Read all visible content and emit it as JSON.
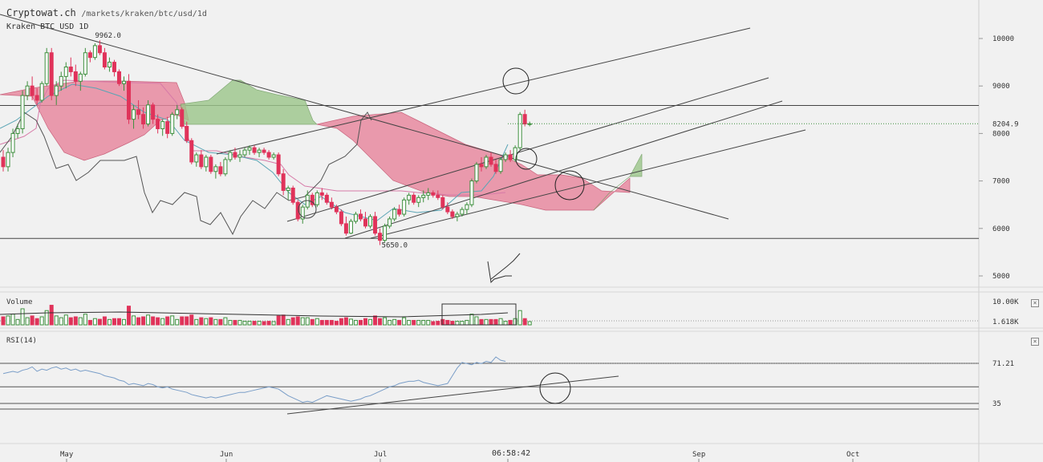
{
  "header": {
    "site": "Cryptowat.ch",
    "path": "/markets/kraken/btc/usd/1d",
    "instrument": "Kraken BTC USD 1D"
  },
  "clock": "06:58:42",
  "panes": {
    "volume_label": "Volume",
    "rsi_label": "RSI(14)",
    "close_symbol": "×"
  },
  "colors": {
    "up": "#3d8f3d",
    "down": "#e0335a",
    "cloud_bear": "#e8849c",
    "cloud_bull": "#9cc68a",
    "rsi": "#7a9ec8",
    "lagging": "#555555",
    "conversion": "#5aa5b5",
    "base": "#d77aa8"
  },
  "chart_data": [
    {
      "type": "candlestick",
      "title": "Kraken BTC USD 1D",
      "x_ticks": [
        "May",
        "Jun",
        "Jul",
        "Sep",
        "Oct"
      ],
      "y_ticks": [
        5000,
        6000,
        7000,
        8000,
        9000,
        10000
      ],
      "ylim": [
        4900,
        10700
      ],
      "last_price": 8204.9,
      "annotations": [
        {
          "label": "9962.0",
          "value": 9962.0
        },
        {
          "label": "5650.0",
          "value": 5650.0
        }
      ],
      "horizontal_levels": [
        8590,
        5790
      ],
      "indicators": [
        "Ichimoku cloud",
        "Conversion line",
        "Base line",
        "Lagging span"
      ],
      "ohlc_approx": [
        [
          7500,
          7650,
          7200,
          7300
        ],
        [
          7300,
          7700,
          7200,
          7600
        ],
        [
          7600,
          8100,
          7500,
          8000
        ],
        [
          8000,
          8200,
          7900,
          8100
        ],
        [
          8100,
          8900,
          8000,
          8800
        ],
        [
          8800,
          9100,
          8700,
          9000
        ],
        [
          9000,
          9200,
          8700,
          8800
        ],
        [
          8800,
          8950,
          8600,
          8700
        ],
        [
          8700,
          9100,
          8650,
          9050
        ],
        [
          9050,
          9800,
          9000,
          9700
        ],
        [
          9700,
          9800,
          8700,
          8800
        ],
        [
          8800,
          9100,
          8600,
          9000
        ],
        [
          9000,
          9300,
          8900,
          9200
        ],
        [
          9200,
          9500,
          8950,
          9400
        ],
        [
          9400,
          9600,
          9200,
          9300
        ],
        [
          9300,
          9450,
          9000,
          9100
        ],
        [
          9100,
          9300,
          8900,
          9250
        ],
        [
          9250,
          9800,
          9200,
          9700
        ],
        [
          9700,
          9750,
          9500,
          9600
        ],
        [
          9600,
          9900,
          9550,
          9850
        ],
        [
          9850,
          9962,
          9650,
          9700
        ],
        [
          9700,
          9800,
          9350,
          9400
        ],
        [
          9400,
          9600,
          9300,
          9500
        ],
        [
          9500,
          9550,
          9200,
          9300
        ],
        [
          9300,
          9350,
          9000,
          9050
        ],
        [
          9050,
          9200,
          8900,
          9100
        ],
        [
          9100,
          9250,
          8200,
          8300
        ],
        [
          8300,
          8600,
          8100,
          8500
        ],
        [
          8500,
          8700,
          8300,
          8400
        ],
        [
          8400,
          8550,
          8100,
          8200
        ],
        [
          8200,
          8700,
          8150,
          8600
        ],
        [
          8600,
          8650,
          8200,
          8300
        ],
        [
          8300,
          8400,
          8000,
          8100
        ],
        [
          8100,
          8300,
          7950,
          8250
        ],
        [
          8250,
          8350,
          7900,
          8000
        ],
        [
          8000,
          8450,
          7950,
          8400
        ],
        [
          8400,
          8600,
          8300,
          8500
        ],
        [
          8500,
          8550,
          8100,
          8150
        ],
        [
          8150,
          8250,
          7800,
          7850
        ],
        [
          7850,
          7900,
          7350,
          7400
        ],
        [
          7400,
          7600,
          7300,
          7550
        ],
        [
          7550,
          7650,
          7250,
          7300
        ],
        [
          7300,
          7550,
          7200,
          7500
        ],
        [
          7500,
          7550,
          7150,
          7200
        ],
        [
          7200,
          7350,
          7050,
          7300
        ],
        [
          7300,
          7400,
          7100,
          7150
        ],
        [
          7150,
          7500,
          7100,
          7450
        ],
        [
          7450,
          7650,
          7400,
          7600
        ],
        [
          7600,
          7700,
          7450,
          7500
        ],
        [
          7500,
          7650,
          7400,
          7550
        ],
        [
          7550,
          7700,
          7500,
          7650
        ],
        [
          7650,
          7750,
          7550,
          7700
        ],
        [
          7700,
          7750,
          7550,
          7600
        ],
        [
          7600,
          7700,
          7500,
          7650
        ],
        [
          7650,
          7700,
          7550,
          7600
        ],
        [
          7600,
          7650,
          7450,
          7500
        ],
        [
          7500,
          7600,
          7450,
          7550
        ],
        [
          7550,
          7600,
          7100,
          7150
        ],
        [
          7150,
          7250,
          6700,
          6800
        ],
        [
          6800,
          6900,
          6600,
          6850
        ],
        [
          6850,
          6900,
          6500,
          6550
        ],
        [
          6550,
          6600,
          6150,
          6200
        ],
        [
          6200,
          6500,
          6100,
          6450
        ],
        [
          6450,
          6800,
          6400,
          6700
        ],
        [
          6700,
          6750,
          6450,
          6500
        ],
        [
          6500,
          6800,
          6450,
          6750
        ],
        [
          6750,
          6850,
          6600,
          6700
        ],
        [
          6700,
          6750,
          6500,
          6550
        ],
        [
          6550,
          6650,
          6400,
          6450
        ],
        [
          6450,
          6500,
          6300,
          6350
        ],
        [
          6350,
          6400,
          6050,
          6100
        ],
        [
          6100,
          6250,
          5850,
          5900
        ],
        [
          5900,
          6200,
          5880,
          6150
        ],
        [
          6150,
          6350,
          6100,
          6300
        ],
        [
          6300,
          6400,
          6150,
          6200
        ],
        [
          6200,
          6350,
          6000,
          6050
        ],
        [
          6050,
          6300,
          6000,
          6250
        ],
        [
          6250,
          6350,
          5850,
          5900
        ],
        [
          5900,
          6000,
          5650,
          5750
        ],
        [
          5750,
          6100,
          5700,
          6050
        ],
        [
          6050,
          6250,
          6000,
          6200
        ],
        [
          6200,
          6450,
          6150,
          6400
        ],
        [
          6400,
          6500,
          6250,
          6300
        ],
        [
          6300,
          6650,
          6250,
          6600
        ],
        [
          6600,
          6750,
          6500,
          6700
        ],
        [
          6700,
          6750,
          6500,
          6550
        ],
        [
          6550,
          6700,
          6450,
          6650
        ],
        [
          6650,
          6800,
          6550,
          6700
        ],
        [
          6700,
          6850,
          6600,
          6750
        ],
        [
          6750,
          6800,
          6650,
          6700
        ],
        [
          6700,
          6800,
          6600,
          6650
        ],
        [
          6650,
          6700,
          6400,
          6450
        ],
        [
          6450,
          6550,
          6300,
          6350
        ],
        [
          6350,
          6400,
          6200,
          6250
        ],
        [
          6250,
          6350,
          6150,
          6300
        ],
        [
          6300,
          6450,
          6250,
          6400
        ],
        [
          6400,
          6550,
          6300,
          6500
        ],
        [
          6500,
          7050,
          6450,
          7000
        ],
        [
          7000,
          7400,
          6950,
          7350
        ],
        [
          7350,
          7500,
          7200,
          7300
        ],
        [
          7300,
          7550,
          7250,
          7500
        ],
        [
          7500,
          7600,
          7300,
          7350
        ],
        [
          7350,
          7450,
          7150,
          7200
        ],
        [
          7200,
          7500,
          7150,
          7450
        ],
        [
          7450,
          7600,
          7400,
          7550
        ],
        [
          7550,
          7650,
          7400,
          7450
        ],
        [
          7450,
          7750,
          7400,
          7700
        ],
        [
          7700,
          8450,
          7650,
          8400
        ],
        [
          8400,
          8500,
          8150,
          8200
        ],
        [
          8200,
          8250,
          8150,
          8205
        ]
      ]
    },
    {
      "type": "bar",
      "title": "Volume",
      "y_ticks": [
        "10.00K",
        "1.618K"
      ]
    },
    {
      "type": "line",
      "title": "RSI(14)",
      "y_ticks": [
        71.21,
        35
      ],
      "levels": [
        71.21,
        50,
        35
      ],
      "values_approx": [
        62,
        63,
        64,
        63,
        65,
        66,
        68,
        64,
        66,
        65,
        67,
        68,
        66,
        67,
        65,
        66,
        64,
        65,
        64,
        63,
        62,
        60,
        59,
        58,
        56,
        55,
        52,
        53,
        52,
        51,
        53,
        52,
        50,
        49,
        50,
        48,
        47,
        46,
        45,
        43,
        42,
        41,
        40,
        41,
        40,
        41,
        42,
        43,
        44,
        45,
        45,
        46,
        47,
        48,
        49,
        50,
        49,
        48,
        45,
        42,
        40,
        38,
        36,
        37,
        36,
        38,
        40,
        42,
        41,
        40,
        39,
        38,
        37,
        38,
        39,
        41,
        42,
        44,
        46,
        48,
        50,
        51,
        53,
        54,
        55,
        55,
        56,
        54,
        53,
        52,
        51,
        52,
        53,
        60,
        67,
        72,
        71,
        70,
        72,
        71,
        73,
        72,
        77,
        74,
        73
      ]
    }
  ]
}
